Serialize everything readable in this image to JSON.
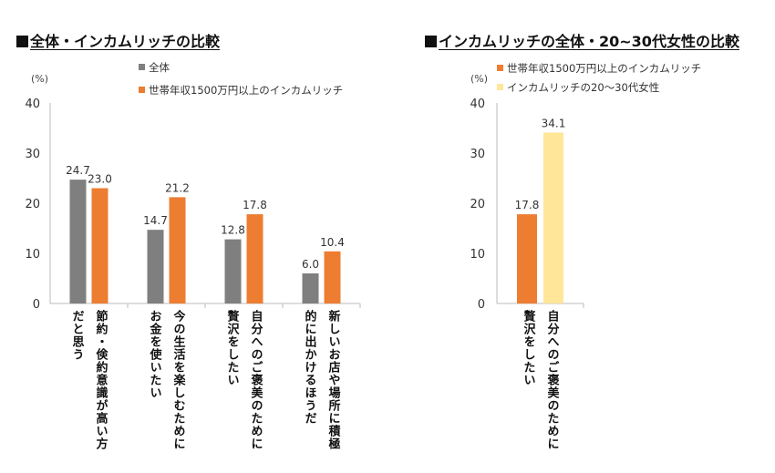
{
  "chart_data": [
    {
      "type": "bar",
      "title": "全体・インカムリッチの比較",
      "ylabel": "(%)",
      "ylim": [
        0,
        40
      ],
      "yticks": [
        0,
        10,
        20,
        30,
        40
      ],
      "legend_placement": "top",
      "categories": [
        [
          "節約・倹約意識が高い方",
          "だと思う"
        ],
        [
          "今の生活を楽しむために",
          "お金を使いたい"
        ],
        [
          "自分へのご褒美のために",
          "贅沢をしたい"
        ],
        [
          "新しいお店や場所に積極",
          "的に出かけるほうだ"
        ]
      ],
      "series": [
        {
          "name": "全体",
          "color": "#7f7f7f",
          "values": [
            24.7,
            14.7,
            12.8,
            6.0
          ]
        },
        {
          "name": "世帯年収1500万円以上のインカムリッチ",
          "color": "#ed7d31",
          "values": [
            23.0,
            21.2,
            17.8,
            10.4
          ]
        }
      ]
    },
    {
      "type": "bar",
      "title": "インカムリッチの全体・20~30代女性の比較",
      "ylabel": "(%)",
      "ylim": [
        0,
        40
      ],
      "yticks": [
        0,
        10,
        20,
        30,
        40
      ],
      "legend_placement": "top",
      "categories": [
        [
          "自分へのご褒美のために",
          "贅沢をしたい"
        ]
      ],
      "series": [
        {
          "name": "世帯年収1500万円以上のインカムリッチ",
          "color": "#ed7d31",
          "values": [
            17.8
          ]
        },
        {
          "name": "インカムリッチの20～30代女性",
          "color": "#ffe699",
          "values": [
            34.1
          ]
        }
      ]
    }
  ]
}
